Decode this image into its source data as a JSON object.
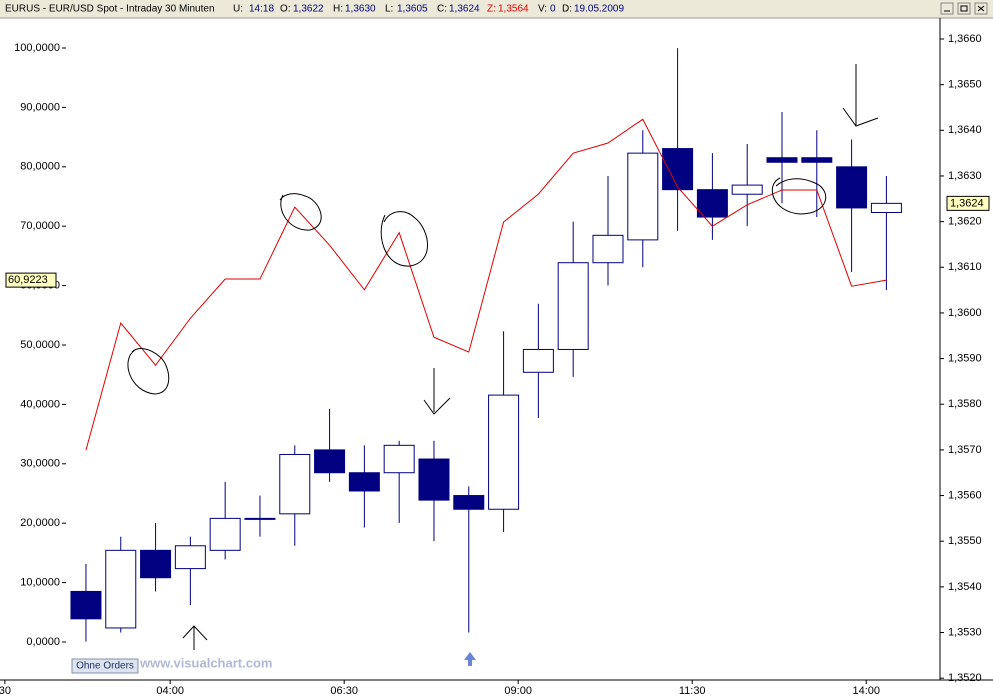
{
  "header": {
    "symbol": "EURUS - EUR/USD Spot - Intraday 30 Minuten",
    "u_label": "U:",
    "u": "14:18",
    "o_label": "O:",
    "o": "1,3622",
    "h_label": "H:",
    "h": "1,3630",
    "l_label": "L:",
    "l": "1,3605",
    "c_label": "C:",
    "c": "1,3624",
    "z_label": "Z:",
    "z": "1,3564",
    "v_label": "V:",
    "v": "0",
    "d_label": "D:",
    "d": "19.05.2009"
  },
  "footer": {
    "button": "Ohne Orders",
    "watermark": "www.visualchart.com"
  },
  "chart_data": {
    "type": "candlestick",
    "xlim": [
      -2.47,
      24.54
    ],
    "xticks": [
      {
        "value": -2.33,
        "label": "30"
      },
      {
        "value": 2.42,
        "label": "04:00"
      },
      {
        "value": 7.42,
        "label": "06:30"
      },
      {
        "value": 12.42,
        "label": "09:00"
      },
      {
        "value": 17.42,
        "label": "11:30"
      },
      {
        "value": 22.42,
        "label": "14:00"
      }
    ],
    "ylim": [
      -6.4,
      105.05
    ],
    "yticks": [
      {
        "value": 0,
        "label": "0,0000"
      },
      {
        "value": 10,
        "label": "10,0000"
      },
      {
        "value": 20,
        "label": "20,0000"
      },
      {
        "value": 30,
        "label": "30,0000"
      },
      {
        "value": 40,
        "label": "40,0000"
      },
      {
        "value": 50,
        "label": "50,0000"
      },
      {
        "value": 60,
        "label": "60,0000"
      },
      {
        "value": 70,
        "label": "70,0000"
      },
      {
        "value": 80,
        "label": "80,0000"
      },
      {
        "value": 90,
        "label": "90,0000"
      },
      {
        "value": 100,
        "label": "100,0000"
      }
    ],
    "y2lim": [
      1.35196,
      1.36646
    ],
    "y2ticks": [
      {
        "value": 1.352,
        "label": "1,3520"
      },
      {
        "value": 1.353,
        "label": "1,3530"
      },
      {
        "value": 1.354,
        "label": "1,3540"
      },
      {
        "value": 1.355,
        "label": "1,3550"
      },
      {
        "value": 1.356,
        "label": "1,3560"
      },
      {
        "value": 1.357,
        "label": "1,3570"
      },
      {
        "value": 1.358,
        "label": "1,3580"
      },
      {
        "value": 1.359,
        "label": "1,3590"
      },
      {
        "value": 1.36,
        "label": "1,3600"
      },
      {
        "value": 1.361,
        "label": "1,3610"
      },
      {
        "value": 1.362,
        "label": "1,3620"
      },
      {
        "value": 1.363,
        "label": "1,3630"
      },
      {
        "value": 1.364,
        "label": "1,3640"
      },
      {
        "value": 1.365,
        "label": "1,3650"
      },
      {
        "value": 1.366,
        "label": "1,3660"
      }
    ],
    "candles": {
      "axis": "y2",
      "up_color": "#ffffff",
      "down_color": "#000080",
      "edge_color": "#000080",
      "open": [
        1.3539,
        1.3531,
        1.3548,
        1.3544,
        1.3548,
        1.3555,
        1.3556,
        1.357,
        1.3565,
        1.3565,
        1.3568,
        1.356,
        1.3557,
        1.3587,
        1.3592,
        1.3611,
        1.3616,
        1.3636,
        1.3627,
        1.3626,
        1.3634,
        1.3634,
        1.3632,
        1.3622
      ],
      "high": [
        1.3545,
        1.3551,
        1.3554,
        1.3551,
        1.3563,
        1.356,
        1.3571,
        1.3579,
        1.3571,
        1.3572,
        1.3572,
        1.3562,
        1.3596,
        1.3602,
        1.362,
        1.363,
        1.364,
        1.3658,
        1.3635,
        1.3637,
        1.3644,
        1.364,
        1.3638,
        1.363
      ],
      "low": [
        1.3528,
        1.353,
        1.3539,
        1.3536,
        1.3546,
        1.3551,
        1.3549,
        1.3563,
        1.3553,
        1.3554,
        1.355,
        1.353,
        1.3552,
        1.3577,
        1.3586,
        1.3606,
        1.361,
        1.3618,
        1.3616,
        1.3619,
        1.3624,
        1.3621,
        1.3609,
        1.3605
      ],
      "close": [
        1.3533,
        1.3548,
        1.3542,
        1.3549,
        1.3555,
        1.3555,
        1.3569,
        1.3565,
        1.3561,
        1.3571,
        1.3559,
        1.3557,
        1.3582,
        1.3592,
        1.3611,
        1.3617,
        1.3635,
        1.3627,
        1.3621,
        1.3628,
        1.3633,
        1.3633,
        1.3623,
        1.3624
      ],
      "close_labels": [
        null,
        null,
        null,
        null,
        null,
        null,
        null,
        null,
        null,
        null,
        null,
        null,
        null,
        null,
        null,
        null,
        null,
        null,
        null,
        null,
        null,
        null,
        null,
        "1,3624"
      ]
    },
    "line": {
      "axis": "y",
      "color": "#e00000",
      "values": [
        32.3,
        53.7,
        46.6,
        54.5,
        61.1,
        61.1,
        73.2,
        66.8,
        59.3,
        68.9,
        51.3,
        48.8,
        70.7,
        75.4,
        82.3,
        84.0,
        88.0,
        76.6,
        70.0,
        73.6,
        76.1,
        76.1,
        59.9,
        60.9223
      ],
      "value_labels": [
        null,
        null,
        null,
        null,
        null,
        null,
        null,
        null,
        null,
        null,
        null,
        null,
        null,
        null,
        null,
        null,
        null,
        null,
        null,
        null,
        null,
        null,
        null,
        "60,9223"
      ]
    }
  }
}
